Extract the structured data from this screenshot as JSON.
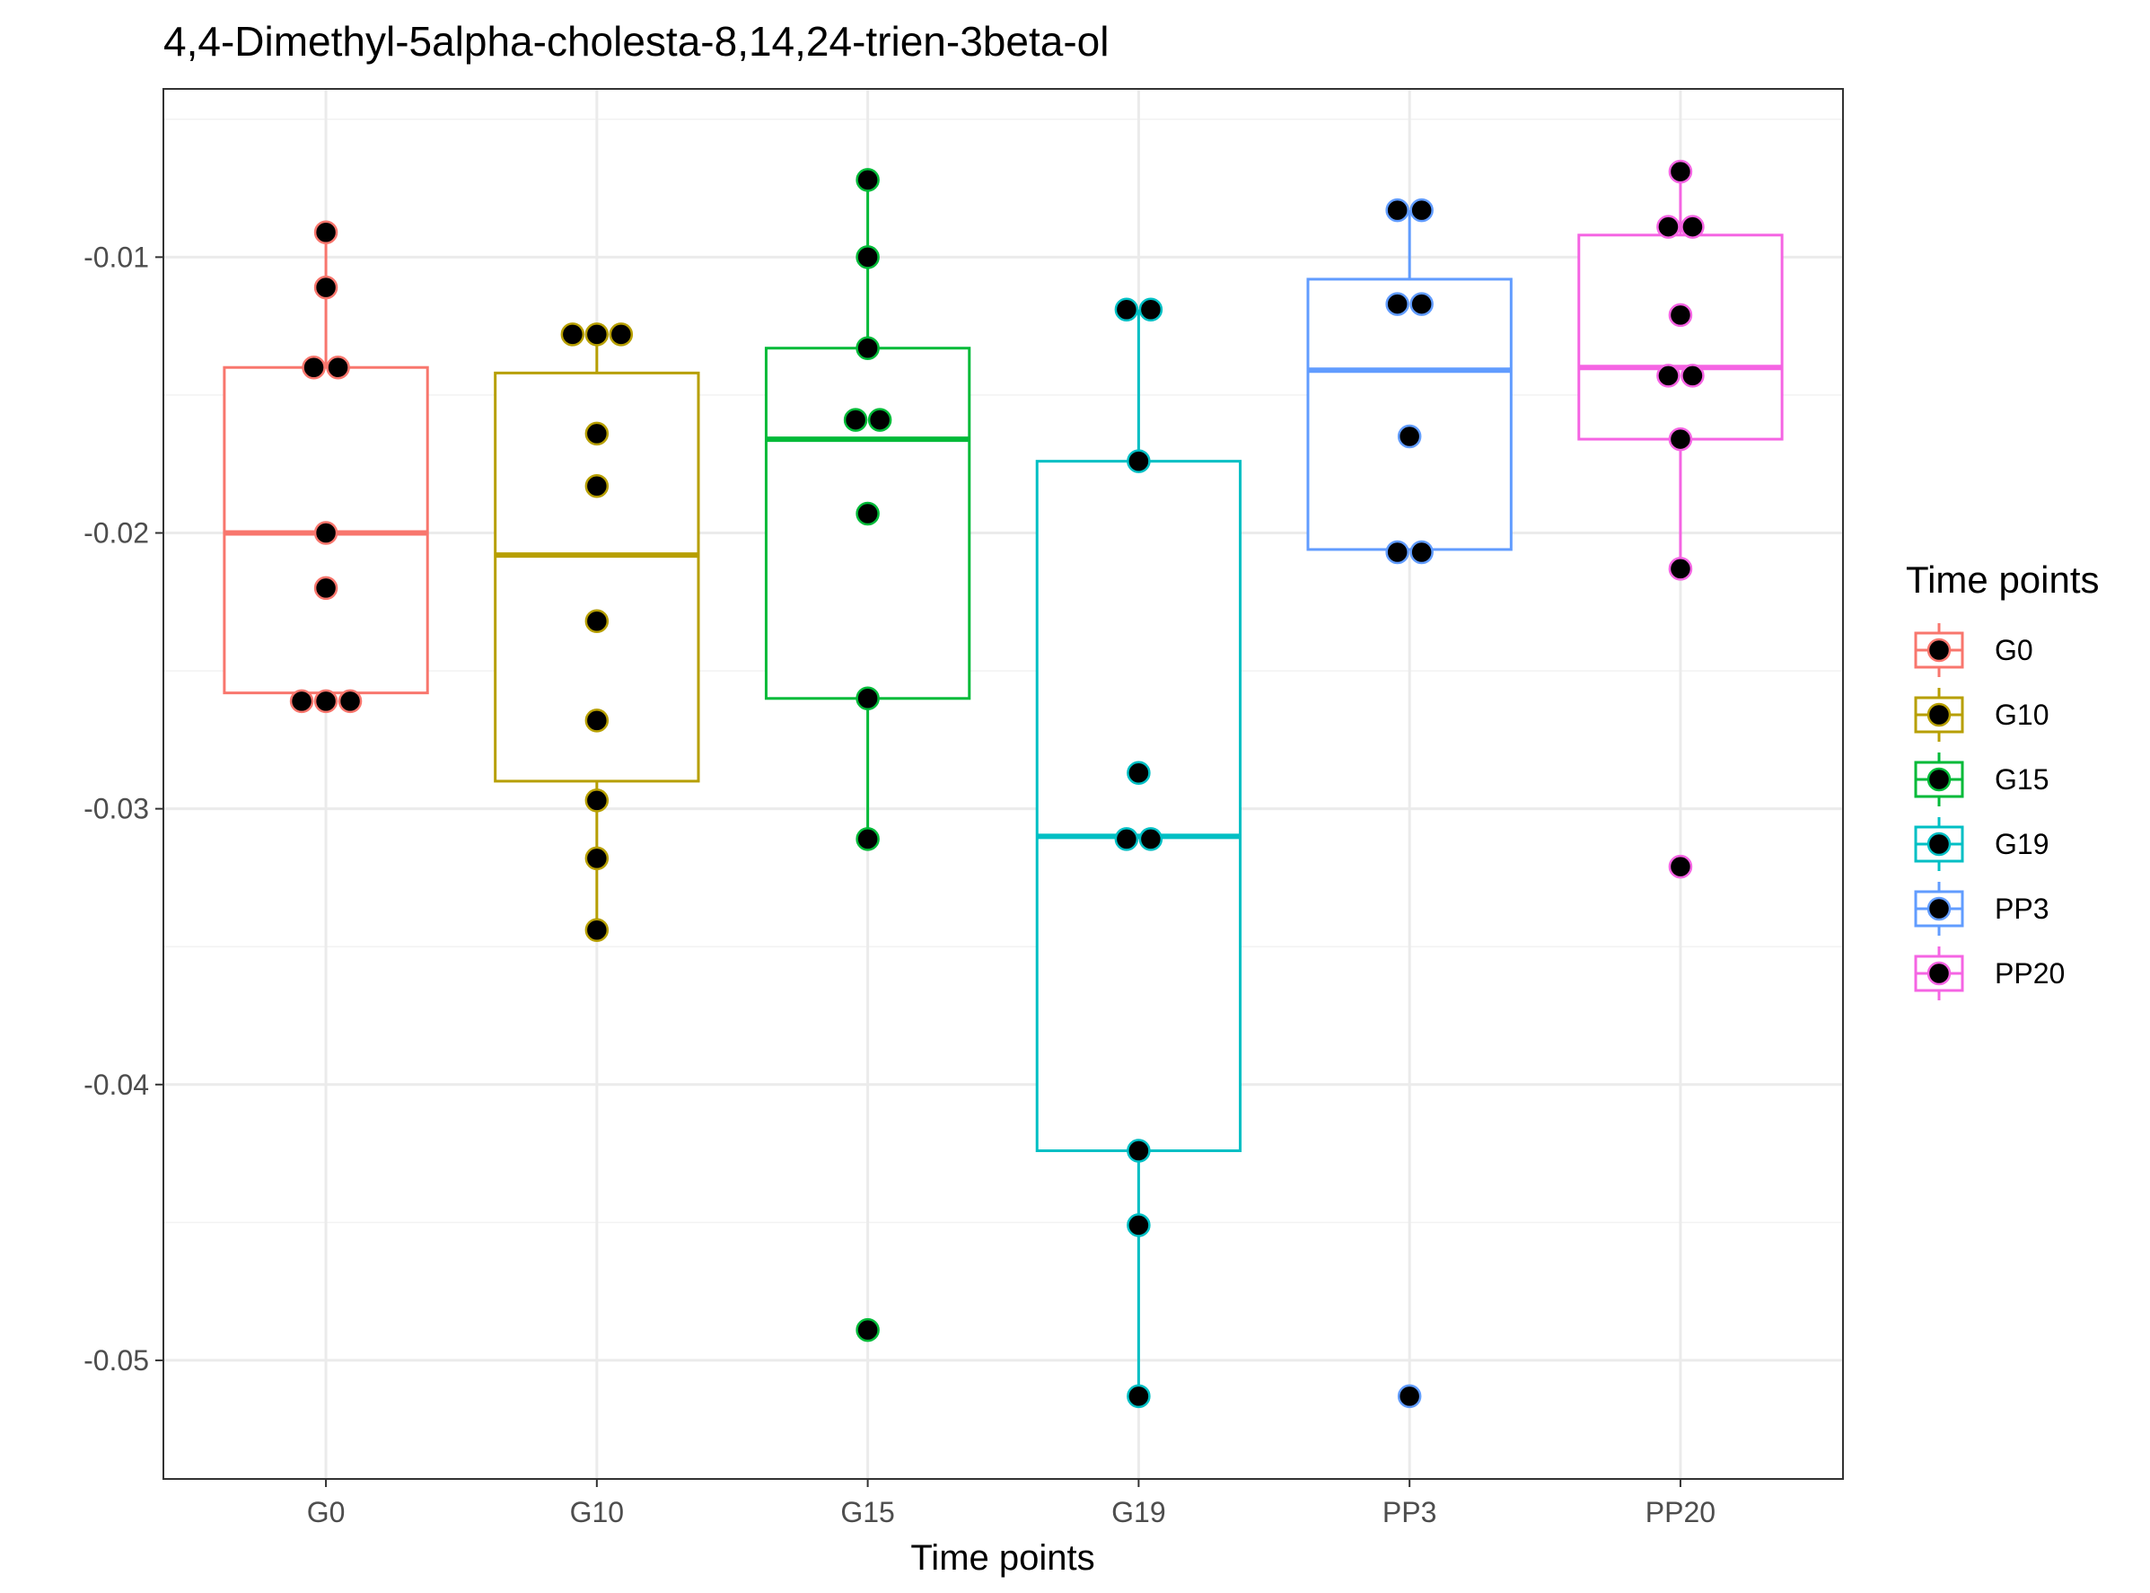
{
  "chart_data": {
    "type": "box",
    "title": "4,4-Dimethyl-5alpha-cholesta-8,14,24-trien-3beta-ol",
    "xlabel": "Time points",
    "ylabel": "",
    "ylim": [
      -0.0543,
      -0.0039
    ],
    "y_ticks": [
      -0.05,
      -0.04,
      -0.03,
      -0.02,
      -0.01
    ],
    "y_tick_labels": [
      "-0.05",
      "-0.04",
      "-0.03",
      "-0.02",
      "-0.01"
    ],
    "grid": true,
    "legend": {
      "title": "Time points",
      "position": "right"
    },
    "categories": [
      "G0",
      "G10",
      "G15",
      "G19",
      "PP3",
      "PP20"
    ],
    "series": [
      {
        "name": "G0",
        "color": "#F8766D",
        "box": {
          "q1": -0.0258,
          "median": -0.02,
          "q3": -0.014,
          "whisker_low": -0.0261,
          "whisker_high": -0.0091
        },
        "points": [
          -0.0091,
          -0.0111,
          -0.014,
          -0.014,
          -0.02,
          -0.022,
          -0.0261,
          -0.0261,
          -0.0261
        ]
      },
      {
        "name": "G10",
        "color": "#B79F00",
        "box": {
          "q1": -0.029,
          "median": -0.0208,
          "q3": -0.0142,
          "whisker_low": -0.0344,
          "whisker_high": -0.0128
        },
        "points": [
          -0.0128,
          -0.0128,
          -0.0128,
          -0.0164,
          -0.0183,
          -0.0232,
          -0.0268,
          -0.0297,
          -0.0318,
          -0.0344
        ]
      },
      {
        "name": "G15",
        "color": "#00BA38",
        "box": {
          "q1": -0.026,
          "median": -0.0166,
          "q3": -0.0133,
          "whisker_low": -0.0311,
          "whisker_high": -0.0072
        },
        "points": [
          -0.0072,
          -0.01,
          -0.0133,
          -0.0159,
          -0.0159,
          -0.0193,
          -0.026,
          -0.0311,
          -0.0489
        ]
      },
      {
        "name": "G19",
        "color": "#00BFC4",
        "box": {
          "q1": -0.0424,
          "median": -0.031,
          "q3": -0.0174,
          "whisker_low": -0.0513,
          "whisker_high": -0.0119
        },
        "points": [
          -0.0119,
          -0.0119,
          -0.0174,
          -0.0287,
          -0.0311,
          -0.0311,
          -0.0424,
          -0.0451,
          -0.0513
        ]
      },
      {
        "name": "PP3",
        "color": "#619CFF",
        "box": {
          "q1": -0.0206,
          "median": -0.0141,
          "q3": -0.0108,
          "whisker_low": -0.0206,
          "whisker_high": -0.0083
        },
        "points": [
          -0.0083,
          -0.0083,
          -0.0117,
          -0.0117,
          -0.0165,
          -0.0207,
          -0.0207,
          -0.0513
        ]
      },
      {
        "name": "PP20",
        "color": "#F564E3",
        "box": {
          "q1": -0.0166,
          "median": -0.014,
          "q3": -0.0092,
          "whisker_low": -0.0213,
          "whisker_high": -0.0069
        },
        "points": [
          -0.0069,
          -0.0089,
          -0.0089,
          -0.0121,
          -0.0143,
          -0.0143,
          -0.0166,
          -0.0213,
          -0.0321
        ]
      }
    ]
  }
}
